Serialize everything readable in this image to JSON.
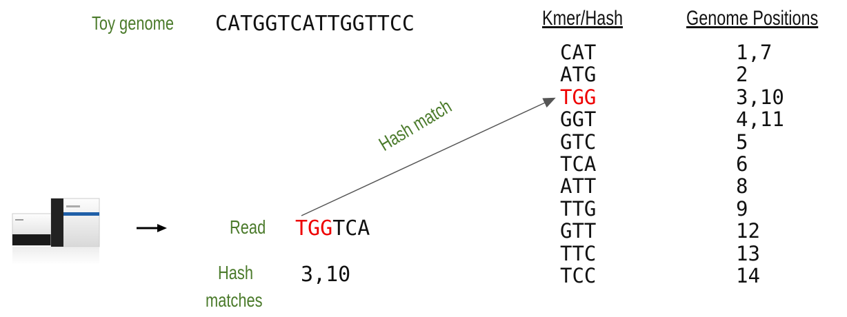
{
  "labels": {
    "toy_genome": "Toy genome",
    "read": "Read",
    "hash_matches_line1": "Hash",
    "hash_matches_line2": "matches",
    "hash_match": "Hash match"
  },
  "genome_sequence": "CATGGTCATTGGTTCC",
  "table": {
    "header_kmer": "Kmer/Hash",
    "header_positions": "Genome Positions",
    "rows": [
      {
        "kmer": "CAT",
        "positions": "1,7",
        "highlight": false
      },
      {
        "kmer": "ATG",
        "positions": "2",
        "highlight": false
      },
      {
        "kmer": "TGG",
        "positions": "3,10",
        "highlight": true
      },
      {
        "kmer": "GGT",
        "positions": "4,11",
        "highlight": false
      },
      {
        "kmer": "GTC",
        "positions": "5",
        "highlight": false
      },
      {
        "kmer": "TCA",
        "positions": "6",
        "highlight": false
      },
      {
        "kmer": "ATT",
        "positions": "8",
        "highlight": false
      },
      {
        "kmer": "TTG",
        "positions": "9",
        "highlight": false
      },
      {
        "kmer": "GTT",
        "positions": "12",
        "highlight": false
      },
      {
        "kmer": "TTC",
        "positions": "13",
        "highlight": false
      },
      {
        "kmer": "TCC",
        "positions": "14",
        "highlight": false
      }
    ]
  },
  "read": {
    "matched_prefix": "TGG",
    "rest": "TCA"
  },
  "hash_matches_value": "3,10",
  "colors": {
    "label_green": "#4a7a2a",
    "highlight_red": "#ee0000",
    "arrow_gray": "#555555"
  },
  "icons": {
    "sequencer": "sequencer-machine-icon",
    "right_arrow": "right-arrow-icon"
  }
}
